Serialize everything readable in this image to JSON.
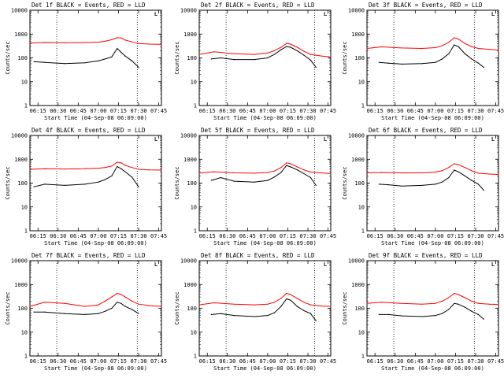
{
  "colors": {
    "events": "#000000",
    "lld": "#ff0000",
    "axis": "#000000",
    "background": "#ffffff"
  },
  "shared": {
    "ylabel": "Counts/sec",
    "xlabel": "Start Time (04-Sep-08 06:09:00)",
    "xticks": [
      "06:15",
      "06:30",
      "06:45",
      "07:00",
      "07:15",
      "07:30",
      "07:45"
    ],
    "yticks": [
      "1",
      "10",
      "100",
      "1000",
      "10000"
    ],
    "corner_marks": [
      "L",
      "L"
    ]
  },
  "chart_data": [
    {
      "type": "line",
      "title": "Det 1f BLACK = Events, RED = LLD",
      "x_range": [
        "06:09",
        "07:47"
      ],
      "ylim": [
        1,
        10000
      ],
      "y_scale": "log",
      "markers": [
        "06:29",
        "07:29"
      ],
      "series": [
        {
          "name": "Events",
          "color": "#000000",
          "x": [
            "06:12",
            "06:20",
            "06:35",
            "06:50",
            "07:00",
            "07:05",
            "07:10",
            "07:14",
            "07:17",
            "07:20",
            "07:25",
            "07:30"
          ],
          "y": [
            70,
            65,
            58,
            62,
            75,
            90,
            110,
            250,
            170,
            120,
            75,
            40
          ]
        },
        {
          "name": "LLD",
          "color": "#ff0000",
          "x": [
            "06:09",
            "06:20",
            "06:35",
            "06:50",
            "07:00",
            "07:05",
            "07:10",
            "07:14",
            "07:17",
            "07:20",
            "07:25",
            "07:30",
            "07:38",
            "07:47"
          ],
          "y": [
            420,
            440,
            430,
            440,
            460,
            500,
            580,
            700,
            680,
            560,
            470,
            400,
            380,
            370
          ]
        }
      ]
    },
    {
      "type": "line",
      "title": "Det 2f BLACK = Events, RED = LLD",
      "x_range": [
        "06:09",
        "07:47"
      ],
      "ylim": [
        1,
        10000
      ],
      "y_scale": "log",
      "markers": [
        "06:29",
        "07:35"
      ],
      "series": [
        {
          "name": "Events",
          "color": "#000000",
          "x": [
            "06:18",
            "06:25",
            "06:35",
            "06:50",
            "07:00",
            "07:05",
            "07:10",
            "07:14",
            "07:17",
            "07:22",
            "07:27",
            "07:32",
            "07:36"
          ],
          "y": [
            90,
            100,
            85,
            85,
            100,
            140,
            220,
            300,
            280,
            200,
            130,
            80,
            40
          ]
        },
        {
          "name": "LLD",
          "color": "#ff0000",
          "x": [
            "06:09",
            "06:20",
            "06:35",
            "06:50",
            "07:00",
            "07:05",
            "07:10",
            "07:14",
            "07:17",
            "07:22",
            "07:27",
            "07:32",
            "07:40",
            "07:47"
          ],
          "y": [
            140,
            180,
            150,
            140,
            160,
            200,
            280,
            400,
            380,
            280,
            190,
            140,
            120,
            110
          ]
        }
      ]
    },
    {
      "type": "line",
      "title": "Det 3f BLACK = Events, RED = LLD",
      "x_range": [
        "06:09",
        "07:47"
      ],
      "ylim": [
        1,
        10000
      ],
      "y_scale": "log",
      "markers": [
        "06:29",
        "07:29"
      ],
      "series": [
        {
          "name": "Events",
          "color": "#000000",
          "x": [
            "06:18",
            "06:25",
            "06:35",
            "06:50",
            "07:00",
            "07:05",
            "07:10",
            "07:14",
            "07:17",
            "07:22",
            "07:27",
            "07:32",
            "07:36"
          ],
          "y": [
            65,
            60,
            55,
            58,
            65,
            90,
            150,
            350,
            300,
            150,
            90,
            60,
            40
          ]
        },
        {
          "name": "LLD",
          "color": "#ff0000",
          "x": [
            "06:09",
            "06:20",
            "06:35",
            "06:50",
            "07:00",
            "07:05",
            "07:10",
            "07:14",
            "07:17",
            "07:22",
            "07:27",
            "07:32",
            "07:40",
            "07:47"
          ],
          "y": [
            250,
            290,
            260,
            250,
            270,
            320,
            450,
            700,
            620,
            400,
            300,
            250,
            230,
            210
          ]
        }
      ]
    },
    {
      "type": "line",
      "title": "Det 4f BLACK = Events, RED = LLD",
      "x_range": [
        "06:09",
        "07:47"
      ],
      "ylim": [
        1,
        10000
      ],
      "y_scale": "log",
      "markers": [
        "06:29",
        "07:29"
      ],
      "series": [
        {
          "name": "Events",
          "color": "#000000",
          "x": [
            "06:12",
            "06:20",
            "06:35",
            "06:50",
            "07:00",
            "07:05",
            "07:10",
            "07:14",
            "07:17",
            "07:20",
            "07:25",
            "07:30"
          ],
          "y": [
            70,
            90,
            80,
            90,
            110,
            140,
            200,
            500,
            400,
            300,
            180,
            70
          ]
        },
        {
          "name": "LLD",
          "color": "#ff0000",
          "x": [
            "06:09",
            "06:20",
            "06:35",
            "06:50",
            "07:00",
            "07:05",
            "07:10",
            "07:14",
            "07:17",
            "07:20",
            "07:25",
            "07:30",
            "07:38",
            "07:47"
          ],
          "y": [
            380,
            400,
            390,
            400,
            420,
            450,
            520,
            750,
            700,
            560,
            450,
            380,
            360,
            350
          ]
        }
      ]
    },
    {
      "type": "line",
      "title": "Det 5f BLACK = Events, RED = LLD",
      "x_range": [
        "06:09",
        "07:47"
      ],
      "ylim": [
        1,
        10000
      ],
      "y_scale": "log",
      "markers": [
        "06:29",
        "07:35"
      ],
      "series": [
        {
          "name": "Events",
          "color": "#000000",
          "x": [
            "06:18",
            "06:25",
            "06:35",
            "06:50",
            "07:00",
            "07:05",
            "07:10",
            "07:14",
            "07:17",
            "07:22",
            "07:27",
            "07:32",
            "07:36"
          ],
          "y": [
            130,
            170,
            120,
            110,
            130,
            180,
            280,
            550,
            480,
            360,
            250,
            170,
            80
          ]
        },
        {
          "name": "LLD",
          "color": "#ff0000",
          "x": [
            "06:09",
            "06:20",
            "06:35",
            "06:50",
            "07:00",
            "07:05",
            "07:10",
            "07:14",
            "07:17",
            "07:22",
            "07:27",
            "07:32",
            "07:40",
            "07:47"
          ],
          "y": [
            260,
            300,
            270,
            260,
            280,
            320,
            450,
            700,
            650,
            480,
            360,
            290,
            270,
            250
          ]
        }
      ]
    },
    {
      "type": "line",
      "title": "Det 6f BLACK = Events, RED = LLD",
      "x_range": [
        "06:09",
        "07:47"
      ],
      "ylim": [
        1,
        10000
      ],
      "y_scale": "log",
      "markers": [
        "06:29",
        "07:29"
      ],
      "series": [
        {
          "name": "Events",
          "color": "#000000",
          "x": [
            "06:18",
            "06:25",
            "06:35",
            "06:50",
            "07:00",
            "07:05",
            "07:10",
            "07:14",
            "07:17",
            "07:22",
            "07:27",
            "07:32",
            "07:36"
          ],
          "y": [
            90,
            85,
            75,
            80,
            90,
            110,
            170,
            350,
            300,
            200,
            130,
            90,
            50
          ]
        },
        {
          "name": "LLD",
          "color": "#ff0000",
          "x": [
            "06:09",
            "06:20",
            "06:35",
            "06:50",
            "07:00",
            "07:05",
            "07:10",
            "07:14",
            "07:17",
            "07:22",
            "07:27",
            "07:32",
            "07:40",
            "07:47"
          ],
          "y": [
            270,
            280,
            270,
            270,
            290,
            330,
            450,
            650,
            600,
            450,
            330,
            260,
            240,
            230
          ]
        }
      ]
    },
    {
      "type": "line",
      "title": "Det 7f BLACK = Events, RED = LLD",
      "x_range": [
        "06:09",
        "07:47"
      ],
      "ylim": [
        1,
        10000
      ],
      "y_scale": "log",
      "markers": [
        "06:29",
        "07:29"
      ],
      "series": [
        {
          "name": "Events",
          "color": "#000000",
          "x": [
            "06:12",
            "06:20",
            "06:35",
            "06:50",
            "07:00",
            "07:05",
            "07:10",
            "07:14",
            "07:17",
            "07:20",
            "07:25",
            "07:30"
          ],
          "y": [
            70,
            70,
            60,
            55,
            60,
            75,
            100,
            180,
            160,
            120,
            90,
            60
          ]
        },
        {
          "name": "LLD",
          "color": "#ff0000",
          "x": [
            "06:09",
            "06:20",
            "06:35",
            "06:50",
            "07:00",
            "07:05",
            "07:10",
            "07:14",
            "07:17",
            "07:20",
            "07:25",
            "07:30",
            "07:38",
            "07:47"
          ],
          "y": [
            120,
            180,
            160,
            120,
            140,
            200,
            300,
            420,
            380,
            300,
            200,
            150,
            130,
            120
          ]
        }
      ]
    },
    {
      "type": "line",
      "title": "Det 8f BLACK = Events, RED = LLD",
      "x_range": [
        "06:09",
        "07:47"
      ],
      "ylim": [
        1,
        10000
      ],
      "y_scale": "log",
      "markers": [
        "06:29",
        "07:35"
      ],
      "series": [
        {
          "name": "Events",
          "color": "#000000",
          "x": [
            "06:18",
            "06:25",
            "06:35",
            "06:50",
            "07:00",
            "07:05",
            "07:10",
            "07:14",
            "07:17",
            "07:22",
            "07:27",
            "07:32",
            "07:36"
          ],
          "y": [
            55,
            60,
            50,
            45,
            50,
            65,
            120,
            250,
            220,
            120,
            80,
            60,
            30
          ]
        },
        {
          "name": "LLD",
          "color": "#ff0000",
          "x": [
            "06:09",
            "06:20",
            "06:35",
            "06:50",
            "07:00",
            "07:05",
            "07:10",
            "07:14",
            "07:17",
            "07:22",
            "07:27",
            "07:32",
            "07:40",
            "07:47"
          ],
          "y": [
            140,
            170,
            150,
            140,
            150,
            180,
            260,
            420,
            380,
            260,
            180,
            140,
            125,
            120
          ]
        }
      ]
    },
    {
      "type": "line",
      "title": "Det 9f BLACK = Events, RED = LLD",
      "x_range": [
        "06:09",
        "07:47"
      ],
      "ylim": [
        1,
        10000
      ],
      "y_scale": "log",
      "markers": [
        "06:29",
        "07:29"
      ],
      "series": [
        {
          "name": "Events",
          "color": "#000000",
          "x": [
            "06:18",
            "06:25",
            "06:35",
            "06:50",
            "07:00",
            "07:05",
            "07:10",
            "07:14",
            "07:17",
            "07:22",
            "07:27",
            "07:32",
            "07:36"
          ],
          "y": [
            55,
            55,
            48,
            45,
            50,
            60,
            90,
            160,
            150,
            110,
            75,
            55,
            35
          ]
        },
        {
          "name": "LLD",
          "color": "#ff0000",
          "x": [
            "06:09",
            "06:20",
            "06:35",
            "06:50",
            "07:00",
            "07:05",
            "07:10",
            "07:14",
            "07:17",
            "07:22",
            "07:27",
            "07:32",
            "07:40",
            "07:47"
          ],
          "y": [
            160,
            180,
            160,
            150,
            160,
            200,
            280,
            420,
            380,
            280,
            200,
            160,
            150,
            145
          ]
        }
      ]
    }
  ]
}
